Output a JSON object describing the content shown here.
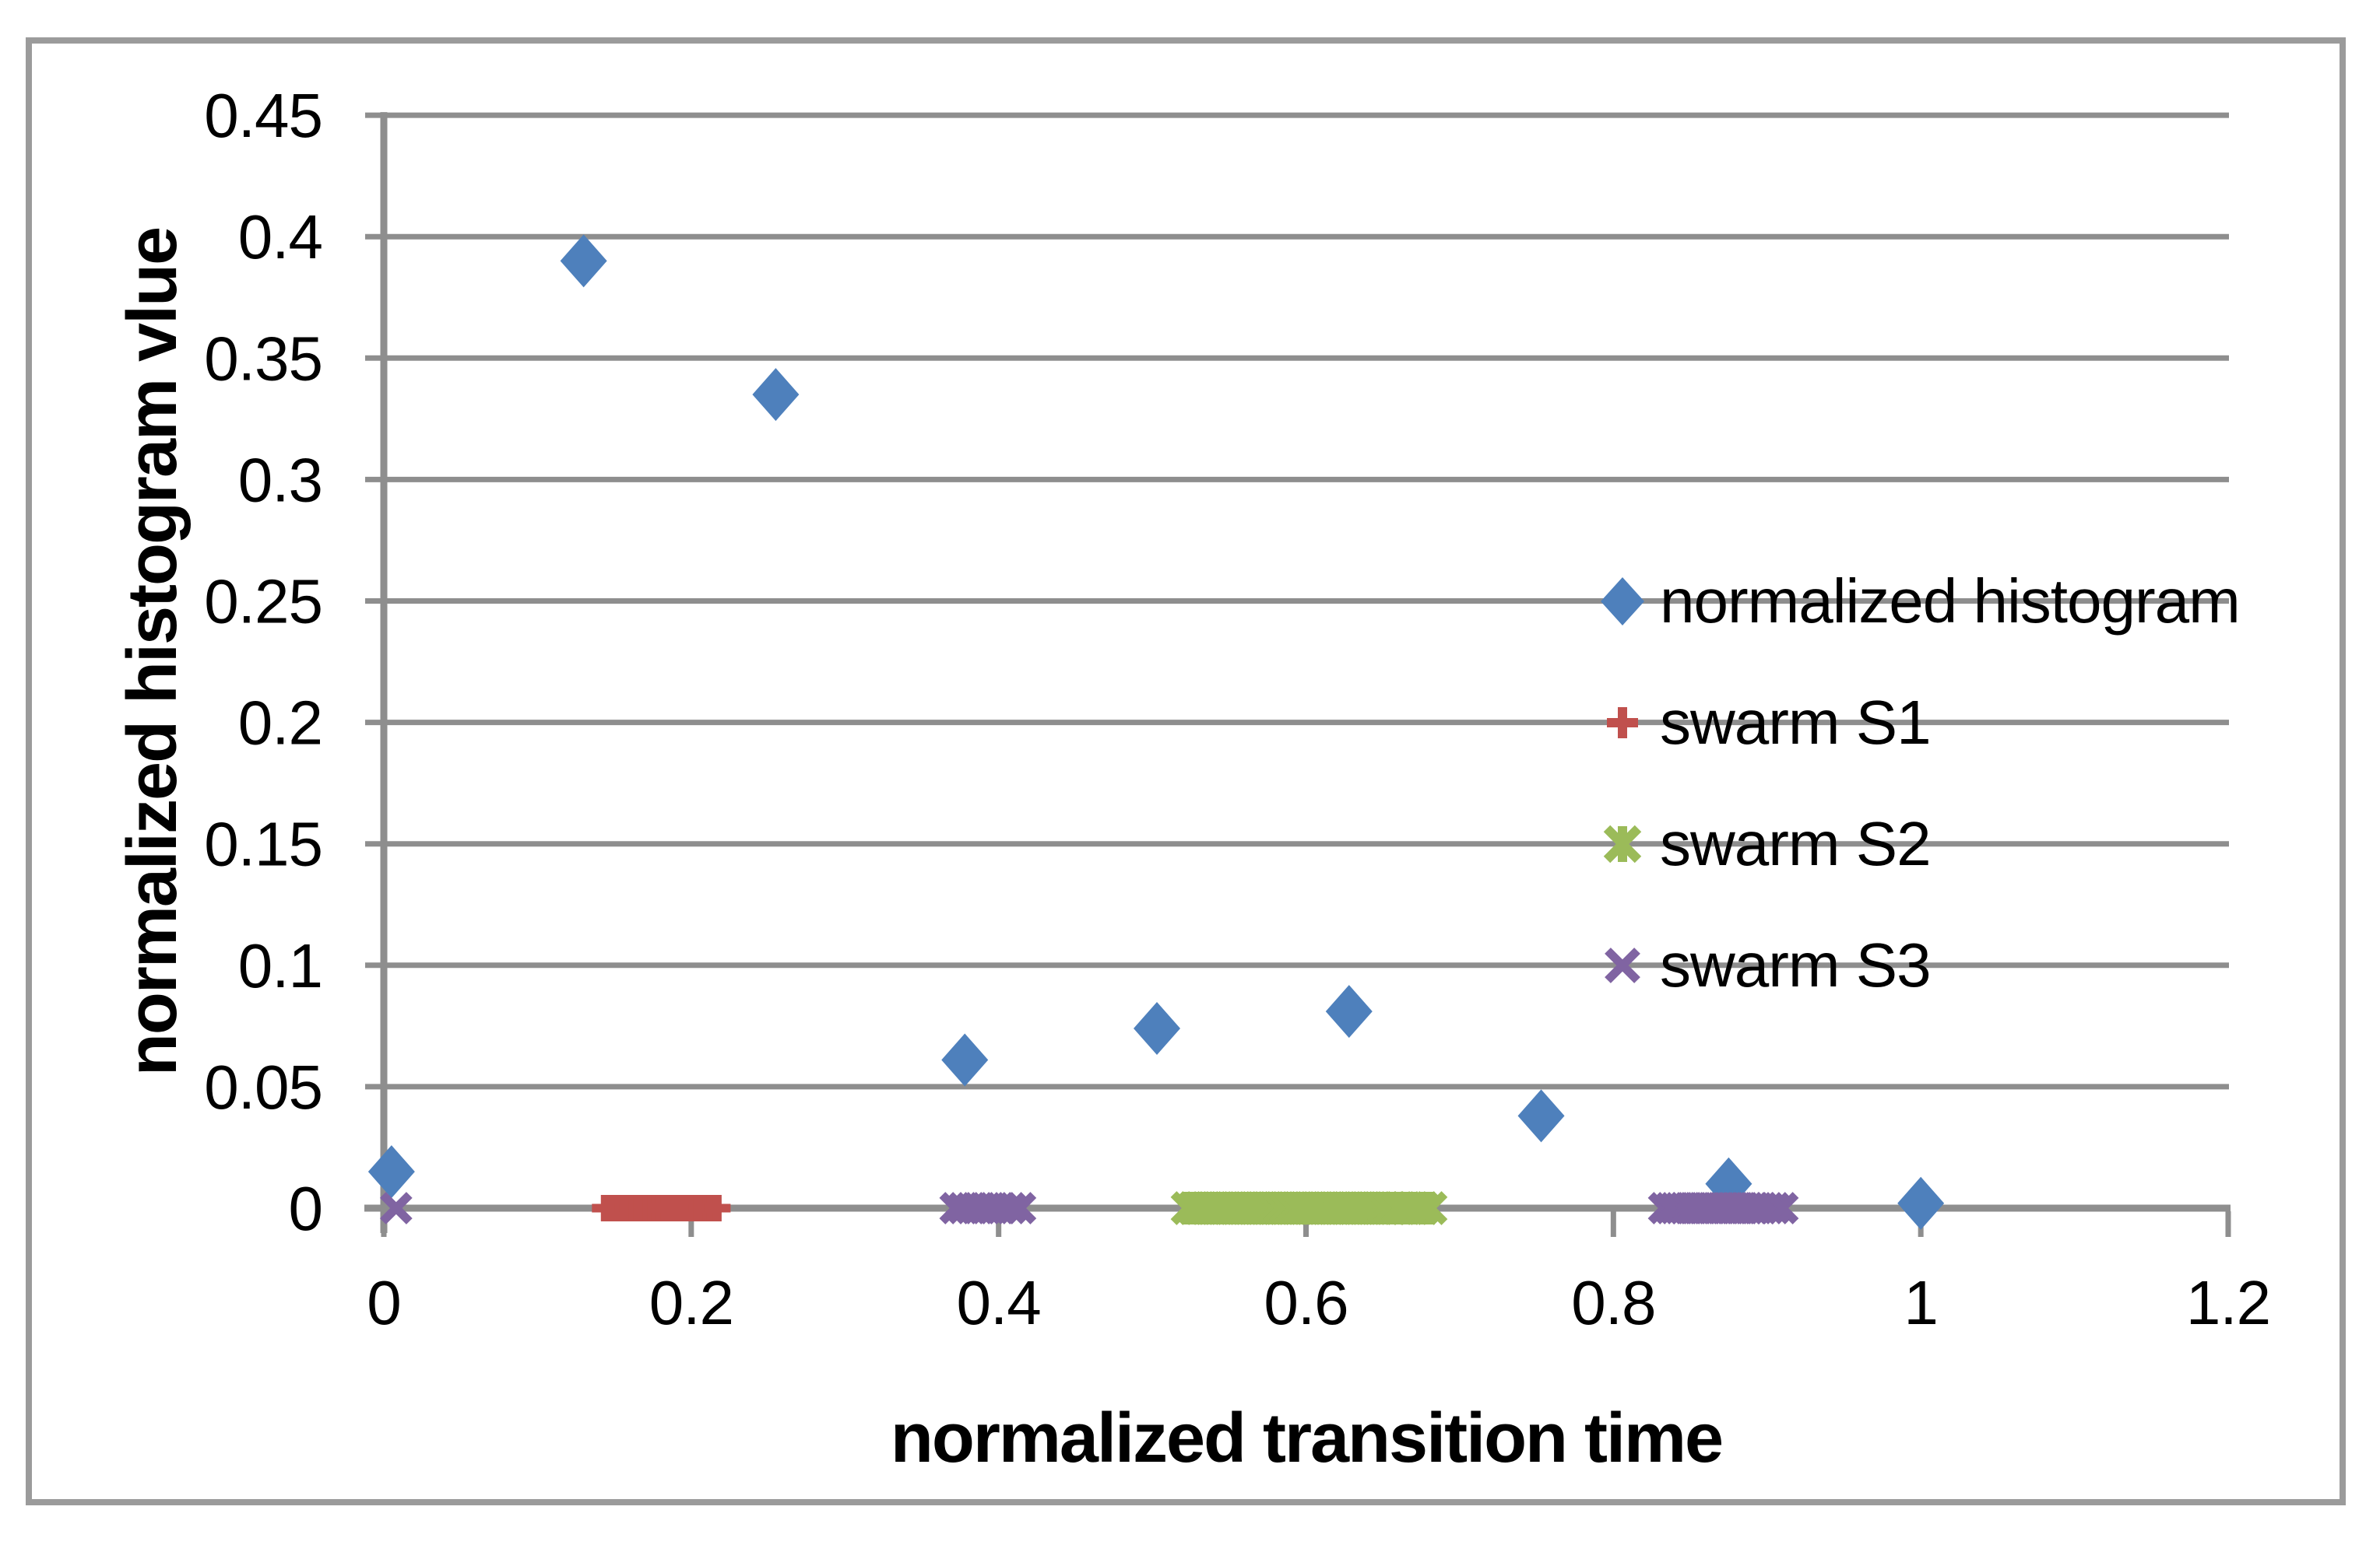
{
  "chart_data": {
    "type": "scatter",
    "title": "",
    "xlabel": "normalized transition time",
    "ylabel": "normalized histogram vlue",
    "xlim": [
      0,
      1.2
    ],
    "ylim": [
      0,
      0.45
    ],
    "x_ticks": [
      0,
      0.2,
      0.4,
      0.6,
      0.8,
      1,
      1.2
    ],
    "x_tick_labels": [
      "0",
      "0.2",
      "0.4",
      "0.6",
      "0.8",
      "1",
      "1.2"
    ],
    "y_ticks": [
      0,
      0.05,
      0.1,
      0.15,
      0.2,
      0.25,
      0.3,
      0.35,
      0.4,
      0.45
    ],
    "y_tick_labels": [
      "0",
      "0.05",
      "0.1",
      "0.15",
      "0.2",
      "0.25",
      "0.3",
      "0.35",
      "0.4",
      "0.45"
    ],
    "grid": "horizontal",
    "legend_position": "inside-right-middle",
    "series": [
      {
        "name": "normalized histogram",
        "marker": "diamond",
        "color": "#4E80BC",
        "points": [
          [
            0.005,
            0.015
          ],
          [
            0.13,
            0.39
          ],
          [
            0.255,
            0.335
          ],
          [
            0.378,
            0.061
          ],
          [
            0.503,
            0.074
          ],
          [
            0.628,
            0.081
          ],
          [
            0.753,
            0.038
          ],
          [
            0.875,
            0.01
          ],
          [
            1.0,
            0.002
          ]
        ]
      },
      {
        "name": "swarm S1",
        "marker": "plus",
        "color": "#C0504D",
        "y": 0,
        "x_values": [
          0.144,
          0.147,
          0.15,
          0.153,
          0.156,
          0.159,
          0.162,
          0.165,
          0.168,
          0.171,
          0.174,
          0.177,
          0.18,
          0.183,
          0.186,
          0.189,
          0.192,
          0.195,
          0.198,
          0.201,
          0.204,
          0.207,
          0.21,
          0.213,
          0.217
        ]
      },
      {
        "name": "swarm S2",
        "marker": "asterisk-x",
        "color": "#9BBB59",
        "y": 0,
        "x_values": [
          0.523,
          0.527,
          0.531,
          0.535,
          0.539,
          0.543,
          0.547,
          0.551,
          0.555,
          0.559,
          0.563,
          0.567,
          0.571,
          0.575,
          0.579,
          0.583,
          0.587,
          0.591,
          0.595,
          0.599,
          0.603,
          0.607,
          0.611,
          0.615,
          0.619,
          0.623,
          0.627,
          0.631,
          0.635,
          0.639,
          0.643,
          0.647,
          0.651,
          0.655,
          0.66,
          0.665,
          0.67,
          0.676,
          0.681
        ]
      },
      {
        "name": "swarm S3",
        "marker": "x",
        "color": "#8064A2",
        "y": 0,
        "x_values": [
          0.008,
          0.372,
          0.377,
          0.382,
          0.387,
          0.392,
          0.397,
          0.402,
          0.408,
          0.414,
          0.833,
          0.837,
          0.84,
          0.843,
          0.846,
          0.849,
          0.852,
          0.855,
          0.858,
          0.861,
          0.864,
          0.867,
          0.87,
          0.873,
          0.876,
          0.879,
          0.882,
          0.885,
          0.888,
          0.891,
          0.894,
          0.897,
          0.901,
          0.905,
          0.91
        ]
      }
    ],
    "legend_rows_at_y_values": [
      0.25,
      0.2,
      0.15,
      0.1
    ]
  },
  "colors": {
    "series_blue": "#4E80BC",
    "series_red": "#C0504D",
    "series_green": "#9BBB59",
    "series_purple": "#8064A2",
    "gridline": "#8e8e8e",
    "axis": "#8e8e8e",
    "chart_border": "#9b9b9b",
    "text": "#000000",
    "background": "#ffffff"
  }
}
